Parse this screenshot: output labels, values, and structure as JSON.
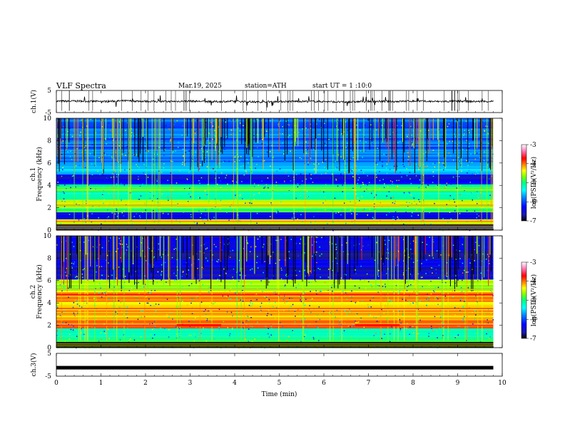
{
  "header": {
    "title": "VLF Spectra",
    "date": "Mar.19, 2025",
    "station": "station=ATH",
    "start": "start UT =  1 :10:0"
  },
  "colors": {
    "scale": [
      "#000000",
      "#1a1aaa",
      "#0000ff",
      "#0080ff",
      "#00ffff",
      "#00ff80",
      "#80ff00",
      "#ffff00",
      "#ff8000",
      "#ff0000",
      "#ff80c0",
      "#ffffff"
    ]
  },
  "chart_data": [
    {
      "type": "line",
      "panel": "ch1-waveform",
      "ylabel": "ch.1(V)",
      "ylim": [
        -5,
        5
      ],
      "yticks": [
        "5",
        "-5"
      ],
      "xlim": [
        0,
        10
      ],
      "x": [
        0,
        0.5,
        1,
        1.5,
        2,
        2.5,
        3,
        3.5,
        4,
        4.5,
        5,
        5.5,
        6,
        6.5,
        7,
        7.5,
        8,
        8.5,
        9,
        9.5,
        9.8
      ],
      "y": [
        0.1,
        0.2,
        0.0,
        0.3,
        0.1,
        0.0,
        0.2,
        -0.1,
        0.1,
        -0.2,
        0.0,
        0.1,
        0.0,
        -0.3,
        0.1,
        0.0,
        0.2,
        0.0,
        0.1,
        0.0,
        0.1
      ]
    },
    {
      "type": "heatmap",
      "panel": "ch1-spectrogram",
      "ylabel": "ch.1\nFrequency (kHz)",
      "ylim": [
        0,
        10
      ],
      "yticks": [
        "0",
        "2",
        "4",
        "6",
        "8",
        "10"
      ],
      "xlim": [
        0,
        10
      ],
      "colorbar": {
        "label": "log(PSD)(V²/Hz)",
        "range": [
          -7,
          -3
        ],
        "ticks": [
          "-3",
          "-4",
          "-5",
          "-6",
          "-7"
        ]
      },
      "bands_khz": [
        {
          "f": 0.1,
          "level": -3.8
        },
        {
          "f": 0.3,
          "level": -3.8
        },
        {
          "f": 0.8,
          "level": -4.4
        },
        {
          "f": 1.3,
          "level": -6.3
        },
        {
          "f": 2.0,
          "level": -4.8
        },
        {
          "f": 2.2,
          "level": -4.5
        },
        {
          "f": 3.2,
          "level": -5.3
        },
        {
          "f": 3.6,
          "level": -4.9
        },
        {
          "f": 4.7,
          "level": -6.4
        },
        {
          "f": 5.3,
          "level": -5.6
        },
        {
          "f": 7.0,
          "level": -5.9
        }
      ],
      "features": [
        {
          "t_start": 2.7,
          "t_end": 3.7,
          "f": 2.2,
          "level": -4.2
        },
        {
          "t_start": 6.7,
          "t_end": 7.7,
          "f": 2.2,
          "level": -4.2
        }
      ]
    },
    {
      "type": "heatmap",
      "panel": "ch2-spectrogram",
      "ylabel": "ch.2\nFrequency (kHz)",
      "ylim": [
        0,
        10
      ],
      "yticks": [
        "0",
        "2",
        "4",
        "6",
        "8",
        "10"
      ],
      "xlim": [
        0,
        10
      ],
      "colorbar": {
        "label": "log(PSD)(V²/Hz)",
        "range": [
          -7,
          -3
        ],
        "ticks": [
          "-3",
          "-4",
          "-5",
          "-6",
          "-7"
        ]
      },
      "bands_khz": [
        {
          "f": 0.5,
          "level": -5.0
        },
        {
          "f": 1.5,
          "level": -5.2
        },
        {
          "f": 2.0,
          "level": -4.0
        },
        {
          "f": 3.5,
          "level": -4.2
        },
        {
          "f": 4.7,
          "level": -4.1
        },
        {
          "f": 5.2,
          "level": -4.6
        },
        {
          "f": 7.0,
          "level": -6.5
        }
      ],
      "features": [
        {
          "t_start": 2.7,
          "t_end": 3.7,
          "f": 2.0,
          "level": -3.7
        },
        {
          "t_start": 6.7,
          "t_end": 7.7,
          "f": 2.0,
          "level": -3.7
        }
      ]
    },
    {
      "type": "line",
      "panel": "ch3-waveform",
      "ylabel": "ch.3(V)",
      "ylim": [
        -5,
        5
      ],
      "yticks": [
        "5",
        "-5"
      ],
      "xlim": [
        0,
        10
      ],
      "xlabel": "Time (min)",
      "xticks": [
        "0",
        "1",
        "2",
        "3",
        "4",
        "5",
        "6",
        "7",
        "8",
        "9",
        "10"
      ],
      "x": [
        0,
        9.8
      ],
      "y": [
        -1.3,
        -1.3
      ]
    }
  ]
}
